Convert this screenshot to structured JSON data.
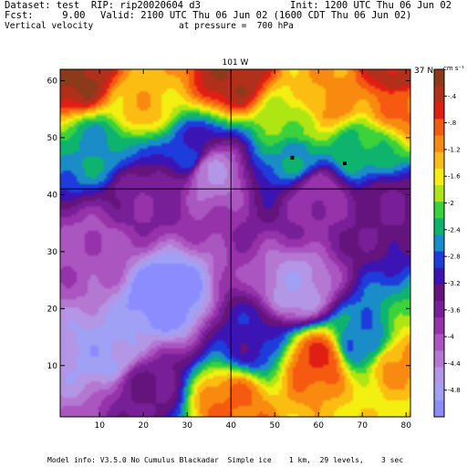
{
  "header": {
    "dataset": "Dataset: test  RIP: rip20020604 d3",
    "init": "Init: 1200 UTC Thu 06 Jun 02",
    "fcst": "Fcst:     9.00",
    "valid": "Valid: 2100 UTC Thu 06 Jun 02 (1600 CDT Thu 06 Jun 02)",
    "field": "Vertical velocity",
    "pressure": "at pressure =  700 hPa"
  },
  "footer": "Model info: V3.5.0 No Cumulus Blackadar  Simple ice    1 km,  29 levels,    3 sec",
  "chart_data": {
    "type": "heatmap",
    "annotations": {
      "top_line_label": "101 W",
      "right_line_label": "37 N",
      "cross_lines": {
        "x": 40,
        "y": 41
      },
      "markers": [
        {
          "x": 54,
          "y": 46.5
        },
        {
          "x": 66,
          "y": 45.5
        }
      ]
    },
    "xlim": [
      1,
      81
    ],
    "ylim": [
      1,
      62
    ],
    "xticks": [
      10,
      20,
      30,
      40,
      50,
      60,
      70,
      80
    ],
    "yticks": [
      10,
      20,
      30,
      40,
      50,
      60
    ],
    "colorbar": {
      "unit": "cm s⁻¹",
      "ticks": [
        "-.4",
        "-.8",
        "-1.2",
        "-1.6",
        "-2",
        "-2.4",
        "-2.8",
        "-3.2",
        "-3.6",
        "-4",
        "-4.4",
        "-4.8"
      ],
      "colors": [
        "#8b3a1a",
        "#b0301a",
        "#e01e14",
        "#f55a10",
        "#f98a10",
        "#fbbd12",
        "#f3ef10",
        "#aee614",
        "#3cd23c",
        "#0eb46e",
        "#1a8cc8",
        "#1e3cdc",
        "#3c14b4",
        "#64147c",
        "#781e96",
        "#9632aa",
        "#aa55c0",
        "#b478d2",
        "#b496e6",
        "#a0a0f5",
        "#8c8cff"
      ]
    },
    "field_anchors": [
      {
        "x": 5,
        "y": 61,
        "v": -0.2
      },
      {
        "x": 40,
        "y": 61,
        "v": -0.3
      },
      {
        "x": 78,
        "y": 61,
        "v": -0.4
      },
      {
        "x": 20,
        "y": 56,
        "v": -1.4
      },
      {
        "x": 62,
        "y": 56,
        "v": -1.2
      },
      {
        "x": 78,
        "y": 56,
        "v": -1.0
      },
      {
        "x": 10,
        "y": 48,
        "v": -2.6
      },
      {
        "x": 30,
        "y": 47,
        "v": -3.0
      },
      {
        "x": 55,
        "y": 52,
        "v": -2.0
      },
      {
        "x": 55,
        "y": 47,
        "v": -2.6
      },
      {
        "x": 70,
        "y": 48,
        "v": -2.4
      },
      {
        "x": 20,
        "y": 40,
        "v": -3.8
      },
      {
        "x": 35,
        "y": 44,
        "v": -4.6
      },
      {
        "x": 60,
        "y": 40,
        "v": -4.0
      },
      {
        "x": 76,
        "y": 38,
        "v": -3.6
      },
      {
        "x": 8,
        "y": 30,
        "v": -4.2
      },
      {
        "x": 25,
        "y": 22,
        "v": -5.4
      },
      {
        "x": 55,
        "y": 23,
        "v": -4.8
      },
      {
        "x": 12,
        "y": 12,
        "v": -5.0
      },
      {
        "x": 45,
        "y": 15,
        "v": -3.2
      },
      {
        "x": 70,
        "y": 14,
        "v": -2.8
      },
      {
        "x": 20,
        "y": 6,
        "v": -3.6
      },
      {
        "x": 60,
        "y": 11,
        "v": -0.8
      },
      {
        "x": 78,
        "y": 10,
        "v": -1.2
      },
      {
        "x": 40,
        "y": 3,
        "v": -1.0
      },
      {
        "x": 75,
        "y": 2,
        "v": -1.6
      }
    ]
  }
}
